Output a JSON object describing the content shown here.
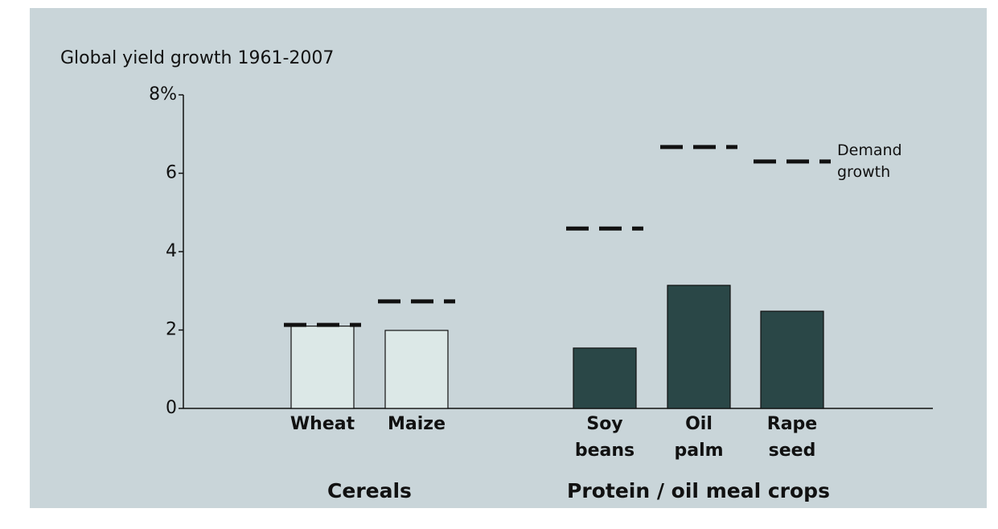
{
  "chart_data": {
    "type": "bar",
    "title": "Global yield growth 1961-2007",
    "categories": [
      "Wheat",
      "Maize",
      "Soy beans",
      "Oil palm",
      "Rape seed"
    ],
    "values": [
      2.1,
      1.99,
      1.54,
      3.14,
      2.48
    ],
    "demand": [
      2.13,
      2.73,
      4.59,
      6.67,
      6.3
    ],
    "colors": [
      "#dce8e7",
      "#dce8e7",
      "#2a4747",
      "#2a4747",
      "#2a4747"
    ],
    "groups": [
      "Cereals",
      "Protein / oil meal crops"
    ],
    "annotation": "Demand growth",
    "ylim": [
      0,
      8
    ],
    "yticks": [
      0,
      2,
      4,
      6,
      {
        "value": 8,
        "label": "8%"
      }
    ]
  }
}
